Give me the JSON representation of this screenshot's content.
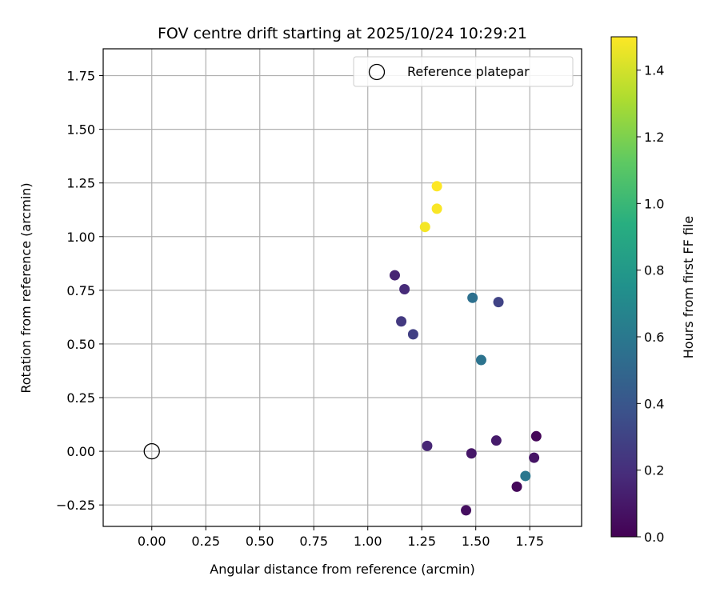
{
  "chart_data": {
    "type": "scatter",
    "title": "FOV centre drift starting at 2025/10/24 10:29:21",
    "xlabel": "Angular distance from reference (arcmin)",
    "ylabel": "Rotation from reference (arcmin)",
    "xlim": [
      -0.225,
      1.99
    ],
    "ylim": [
      -0.35,
      1.875
    ],
    "xticks": [
      0.0,
      0.25,
      0.5,
      0.75,
      1.0,
      1.25,
      1.5,
      1.75
    ],
    "yticks": [
      -0.25,
      0.0,
      0.25,
      0.5,
      0.75,
      1.0,
      1.25,
      1.5,
      1.75
    ],
    "xtick_labels": [
      "0.00",
      "0.25",
      "0.50",
      "0.75",
      "1.00",
      "1.25",
      "1.50",
      "1.75"
    ],
    "ytick_labels": [
      "−0.25",
      "0.00",
      "0.25",
      "0.50",
      "0.75",
      "1.00",
      "1.25",
      "1.50",
      "1.75"
    ],
    "grid": true,
    "colorbar": {
      "label": "Hours from first FF file",
      "range": [
        0.0,
        1.5
      ],
      "ticks": [
        0.0,
        0.2,
        0.4,
        0.6,
        0.8,
        1.0,
        1.2,
        1.4
      ],
      "tick_labels": [
        "0.0",
        "0.2",
        "0.4",
        "0.6",
        "0.8",
        "1.0",
        "1.2",
        "1.4"
      ],
      "colormap": "viridis"
    },
    "legend": {
      "placement": "top-right",
      "entries": [
        {
          "label": "Reference platepar",
          "marker": "open-circle"
        }
      ]
    },
    "reference_point": {
      "x": 0.0,
      "y": 0.0,
      "label": "Reference platepar"
    },
    "series": [
      {
        "name": "FOV centre drift",
        "points": [
          {
            "x": 1.78,
            "y": 0.07,
            "hours": 0.02
          },
          {
            "x": 1.69,
            "y": -0.165,
            "hours": 0.03
          },
          {
            "x": 1.455,
            "y": -0.275,
            "hours": 0.06
          },
          {
            "x": 1.77,
            "y": -0.03,
            "hours": 0.08
          },
          {
            "x": 1.48,
            "y": -0.01,
            "hours": 0.09
          },
          {
            "x": 1.595,
            "y": 0.05,
            "hours": 0.11
          },
          {
            "x": 1.125,
            "y": 0.82,
            "hours": 0.15
          },
          {
            "x": 1.275,
            "y": 0.025,
            "hours": 0.16
          },
          {
            "x": 1.17,
            "y": 0.755,
            "hours": 0.18
          },
          {
            "x": 1.155,
            "y": 0.605,
            "hours": 0.25
          },
          {
            "x": 1.21,
            "y": 0.545,
            "hours": 0.28
          },
          {
            "x": 1.605,
            "y": 0.695,
            "hours": 0.3
          },
          {
            "x": 1.485,
            "y": 0.715,
            "hours": 0.55
          },
          {
            "x": 1.525,
            "y": 0.425,
            "hours": 0.57
          },
          {
            "x": 1.73,
            "y": -0.115,
            "hours": 0.59
          },
          {
            "x": 1.265,
            "y": 1.045,
            "hours": 1.48
          },
          {
            "x": 1.32,
            "y": 1.13,
            "hours": 1.49
          },
          {
            "x": 1.32,
            "y": 1.235,
            "hours": 1.5
          }
        ]
      }
    ]
  }
}
